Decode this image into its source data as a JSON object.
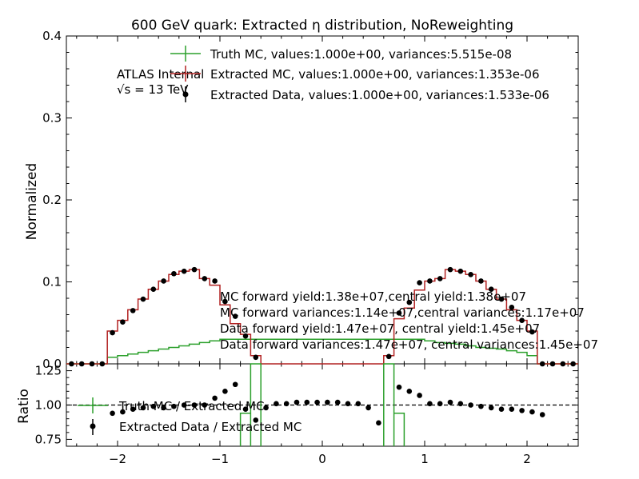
{
  "chart_data": {
    "type": "step",
    "title": "600 GeV quark: Extracted η distribution, NoReweighting",
    "xlabel": "",
    "ylabel_top": "Normalized",
    "ylabel_bottom": "Ratio",
    "xlim": [
      -2.5,
      2.5
    ],
    "ylim_top": [
      0.0,
      0.4
    ],
    "ylim_bottom": [
      0.7,
      1.3
    ],
    "x_ticks": [
      -2,
      -1,
      0,
      1,
      2
    ],
    "x_tick_labels": [
      "−2",
      "−1",
      "0",
      "1",
      "2"
    ],
    "y_ticks_top": [
      0.0,
      0.1,
      0.2,
      0.3,
      0.4
    ],
    "y_tick_labels_top": [
      "0.0",
      "0.1",
      "0.2",
      "0.3",
      "0.4"
    ],
    "y_ticks_bottom": [
      0.75,
      1.0,
      1.25
    ],
    "y_tick_labels_bottom": [
      "0.75",
      "1.00",
      "1.25"
    ],
    "atlas_label": "ATLAS Internal",
    "energy_label": "√s = 13 TeV",
    "legend_top": [
      "Truth MC, values:1.000e+00, variances:5.515e-08",
      "Extracted MC, values:1.000e+00, variances:1.353e-06",
      "Extracted Data, values:1.000e+00, variances:1.533e-06"
    ],
    "legend_bottom": [
      "Truth MC / Extracted MC",
      "Extracted Data / Extracted MC"
    ],
    "annotations": [
      "MC forward yield:1.38e+07,central yield:1.38e+07",
      "MC forward variances:1.14e+07,central variances:1.17e+07",
      "Data forward yield:1.47e+07, central yield:1.45e+07",
      "Data forward variances:1.47e+07, central variances:1.45e+07"
    ],
    "colors": {
      "truth": "#2ca02c",
      "mc": "#b22222",
      "data": "#000000"
    },
    "bin_edges": [
      -2.5,
      -2.4,
      -2.3,
      -2.2,
      -2.1,
      -2.0,
      -1.9,
      -1.8,
      -1.7,
      -1.6,
      -1.5,
      -1.4,
      -1.3,
      -1.2,
      -1.1,
      -1.0,
      -0.9,
      -0.8,
      -0.7,
      -0.6,
      -0.5,
      -0.4,
      -0.3,
      -0.2,
      -0.1,
      0.0,
      0.1,
      0.2,
      0.3,
      0.4,
      0.5,
      0.6,
      0.7,
      0.8,
      0.9,
      1.0,
      1.1,
      1.2,
      1.3,
      1.4,
      1.5,
      1.6,
      1.7,
      1.8,
      1.9,
      2.0,
      2.1,
      2.2,
      2.3,
      2.4,
      2.5
    ],
    "bin_centers": [
      -2.45,
      -2.35,
      -2.25,
      -2.15,
      -2.05,
      -1.95,
      -1.85,
      -1.75,
      -1.65,
      -1.55,
      -1.45,
      -1.35,
      -1.25,
      -1.15,
      -1.05,
      -0.95,
      -0.85,
      -0.75,
      -0.65,
      -0.55,
      -0.45,
      -0.35,
      -0.25,
      -0.15,
      -0.05,
      0.05,
      0.15,
      0.25,
      0.35,
      0.45,
      0.55,
      0.65,
      0.75,
      0.85,
      0.95,
      1.05,
      1.15,
      1.25,
      1.35,
      1.45,
      1.55,
      1.65,
      1.75,
      1.85,
      1.95,
      2.05,
      2.15,
      2.25,
      2.35,
      2.45
    ],
    "truth_mc": [
      0,
      0,
      0,
      0,
      0.008,
      0.01,
      0.012,
      0.014,
      0.016,
      0.018,
      0.02,
      0.022,
      0.024,
      0.026,
      0.028,
      0.03,
      0.03,
      0.03,
      0.03,
      0.03,
      0.03,
      0.03,
      0.03,
      0.03,
      0.03,
      0.03,
      0.03,
      0.03,
      0.03,
      0.03,
      0.03,
      0.03,
      0.03,
      0.03,
      0.03,
      0.028,
      0.026,
      0.025,
      0.024,
      0.022,
      0.02,
      0.019,
      0.018,
      0.016,
      0.014,
      0.01,
      0,
      0,
      0,
      0
    ],
    "extracted_mc": [
      0,
      0,
      0,
      0,
      0.04,
      0.053,
      0.066,
      0.079,
      0.091,
      0.101,
      0.109,
      0.113,
      0.115,
      0.104,
      0.096,
      0.072,
      0.049,
      0.036,
      0.01,
      0,
      0,
      0,
      0,
      0,
      0,
      0,
      0,
      0,
      0,
      0,
      0,
      0.01,
      0.055,
      0.068,
      0.09,
      0.101,
      0.104,
      0.115,
      0.113,
      0.109,
      0.101,
      0.091,
      0.079,
      0.066,
      0.053,
      0.04,
      0,
      0,
      0,
      0
    ],
    "extracted_data": [
      0,
      0,
      0,
      0,
      0.038,
      0.051,
      0.065,
      0.079,
      0.091,
      0.101,
      0.11,
      0.113,
      0.115,
      0.104,
      0.101,
      0.076,
      0.058,
      0.034,
      0.008,
      null,
      null,
      null,
      null,
      null,
      null,
      null,
      null,
      null,
      null,
      null,
      null,
      0.009,
      0.062,
      0.075,
      0.099,
      0.101,
      0.104,
      0.115,
      0.113,
      0.109,
      0.101,
      0.091,
      0.079,
      0.069,
      0.053,
      0.039,
      0,
      0,
      0,
      0
    ],
    "ratio_truth_mc": [
      null,
      null,
      null,
      null,
      null,
      null,
      null,
      null,
      null,
      null,
      null,
      null,
      null,
      null,
      null,
      null,
      null,
      0.94,
      3.0,
      null,
      null,
      null,
      null,
      null,
      null,
      null,
      null,
      null,
      null,
      null,
      null,
      3.0,
      0.94,
      null,
      null,
      null,
      null,
      null,
      null,
      null,
      null,
      null,
      null,
      null,
      null,
      null,
      null,
      null,
      null,
      null
    ],
    "ratio_data_mc": [
      null,
      null,
      null,
      null,
      0.94,
      0.95,
      0.97,
      0.98,
      0.99,
      0.98,
      0.99,
      1.0,
      1.0,
      1.0,
      1.05,
      1.1,
      1.15,
      0.97,
      0.89,
      0.98,
      1.01,
      1.01,
      1.02,
      1.02,
      1.02,
      1.02,
      1.02,
      1.01,
      1.01,
      0.98,
      0.87,
      null,
      1.13,
      1.1,
      1.07,
      1.01,
      1.01,
      1.02,
      1.01,
      1.0,
      0.99,
      0.98,
      0.97,
      0.97,
      0.96,
      0.95,
      0.93,
      null,
      null,
      null
    ]
  }
}
